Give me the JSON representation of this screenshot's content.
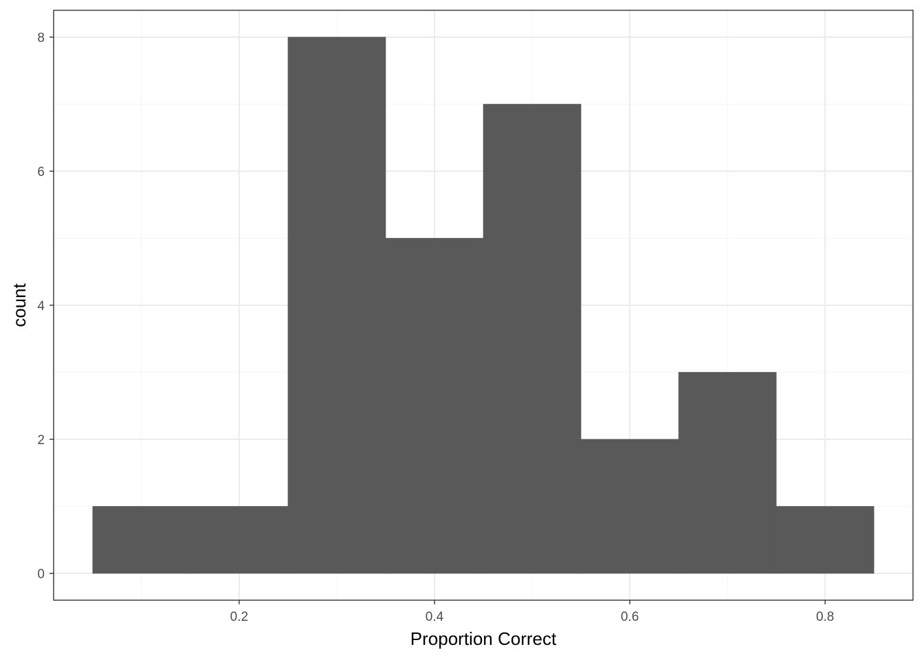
{
  "chart_data": {
    "type": "bar",
    "subtype": "histogram",
    "title": "",
    "xlabel": "Proportion Correct",
    "ylabel": "count",
    "bins": [
      {
        "x0": 0.05,
        "x1": 0.15,
        "count": 1
      },
      {
        "x0": 0.15,
        "x1": 0.25,
        "count": 1
      },
      {
        "x0": 0.25,
        "x1": 0.35,
        "count": 8
      },
      {
        "x0": 0.35,
        "x1": 0.45,
        "count": 5
      },
      {
        "x0": 0.45,
        "x1": 0.55,
        "count": 7
      },
      {
        "x0": 0.55,
        "x1": 0.65,
        "count": 2
      },
      {
        "x0": 0.65,
        "x1": 0.75,
        "count": 3
      },
      {
        "x0": 0.75,
        "x1": 0.85,
        "count": 1
      }
    ],
    "xlim": [
      0.01,
      0.89
    ],
    "ylim": [
      -0.4,
      8.4
    ],
    "x_ticks": [
      {
        "value": 0.2,
        "label": "0.2"
      },
      {
        "value": 0.4,
        "label": "0.4"
      },
      {
        "value": 0.6,
        "label": "0.6"
      },
      {
        "value": 0.8,
        "label": "0.8"
      }
    ],
    "y_ticks": [
      {
        "value": 0,
        "label": "0"
      },
      {
        "value": 2,
        "label": "2"
      },
      {
        "value": 4,
        "label": "4"
      },
      {
        "value": 6,
        "label": "6"
      },
      {
        "value": 8,
        "label": "8"
      }
    ],
    "x_minor_ticks": [
      0.1,
      0.3,
      0.5,
      0.7
    ],
    "y_minor_ticks": [
      1,
      3,
      5,
      7
    ],
    "grid": true,
    "legend": "none",
    "colors": {
      "bar_fill": "#595959",
      "grid_major": "#ebebeb",
      "grid_minor": "#f5f5f5",
      "panel_border": "#333333",
      "tick_label": "#4d4d4d"
    }
  }
}
